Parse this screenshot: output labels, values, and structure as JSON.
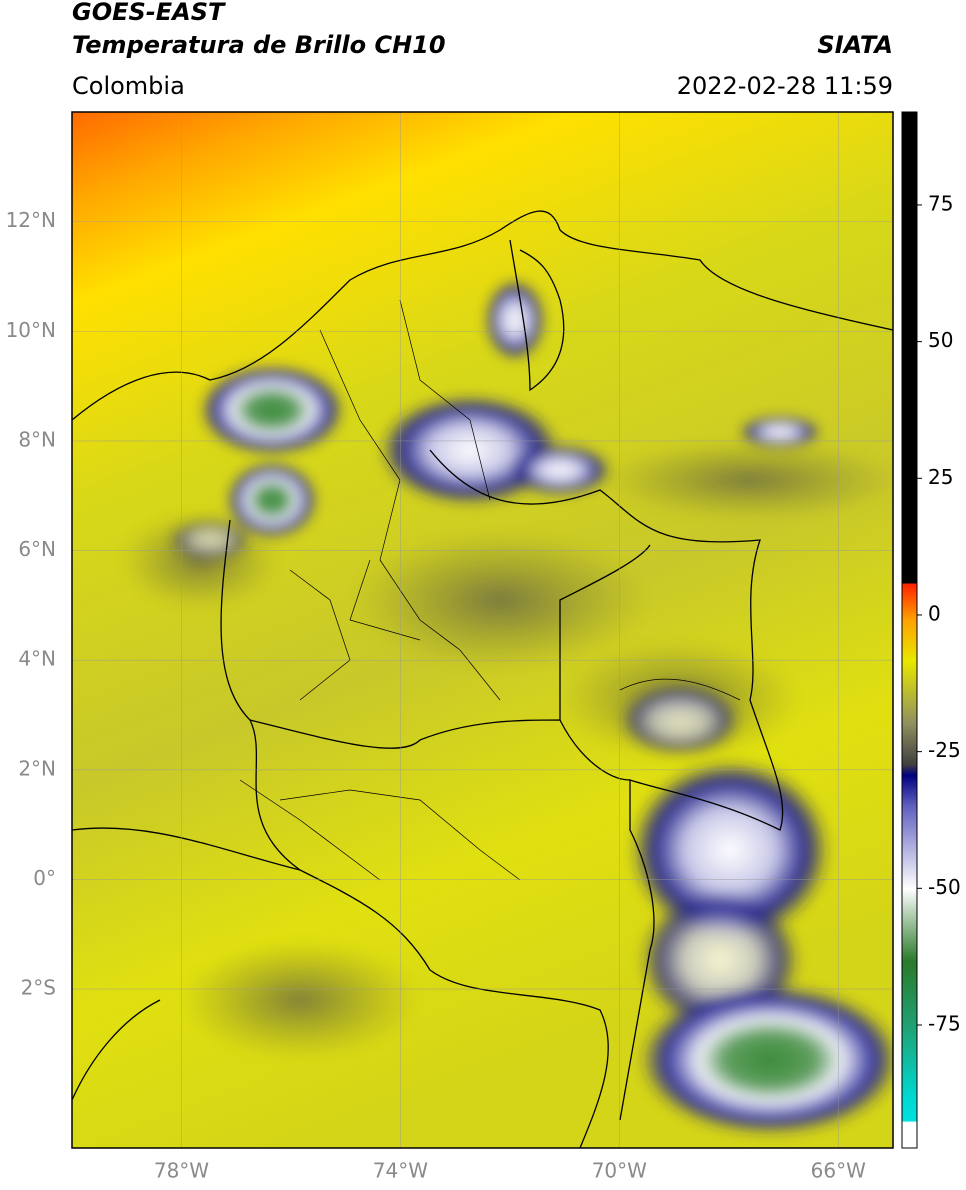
{
  "header": {
    "title": "GOES-EAST",
    "subtitle": "Temperatura de Brillo CH10",
    "source": "SIATA",
    "region": "Colombia",
    "datetime": "2022-02-28 11:59"
  },
  "map": {
    "lon_range": [
      -80,
      -65
    ],
    "lat_range": [
      -4.9,
      14
    ],
    "lon_ticks": [
      {
        "value": -78,
        "label": "78°W"
      },
      {
        "value": -74,
        "label": "74°W"
      },
      {
        "value": -70,
        "label": "70°W"
      },
      {
        "value": -66,
        "label": "66°W"
      }
    ],
    "lat_ticks": [
      {
        "value": 12,
        "label": "12°N"
      },
      {
        "value": 10,
        "label": "10°N"
      },
      {
        "value": 8,
        "label": "8°N"
      },
      {
        "value": 6,
        "label": "6°N"
      },
      {
        "value": 4,
        "label": "4°N"
      },
      {
        "value": 2,
        "label": "2°N"
      },
      {
        "value": 0,
        "label": "0°"
      },
      {
        "value": -2,
        "label": "2°S"
      }
    ]
  },
  "colorbar": {
    "range": [
      -97.5,
      92
    ],
    "ticks": [
      75,
      50,
      25,
      0,
      -25,
      -50,
      -75
    ]
  }
}
